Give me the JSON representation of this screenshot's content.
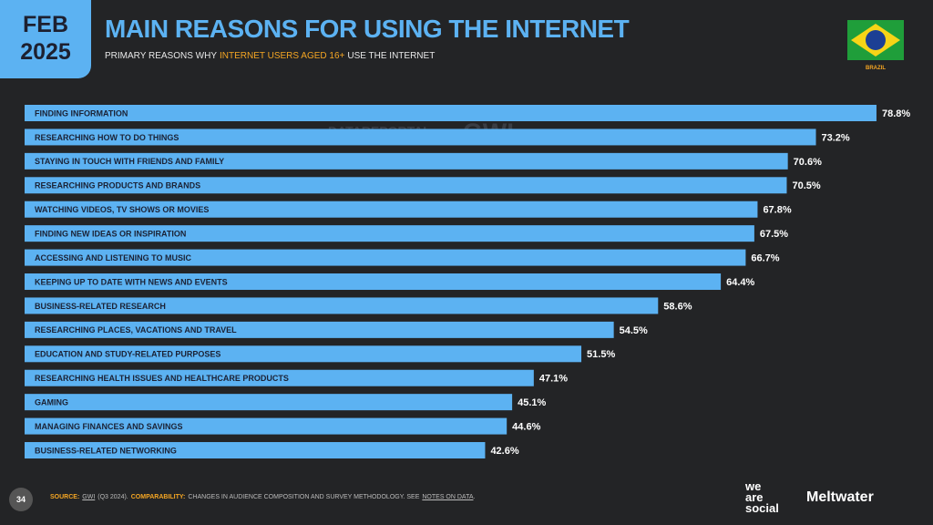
{
  "header": {
    "month": "FEB",
    "year": "2025",
    "title": "MAIN REASONS FOR USING THE INTERNET",
    "subtitle": [
      "PRIMARY REASONS WHY",
      "INTERNET USERS AGED 16+",
      "USE THE INTERNET"
    ],
    "country": "BRAZIL"
  },
  "watermark": [
    "DATAREPORTAL",
    "GWI."
  ],
  "chart_data": {
    "type": "bar",
    "orientation": "horizontal",
    "categories": [
      "FINDING INFORMATION",
      "RESEARCHING HOW TO DO THINGS",
      "STAYING IN TOUCH WITH FRIENDS AND FAMILY",
      "RESEARCHING PRODUCTS AND BRANDS",
      "WATCHING VIDEOS, TV SHOWS OR MOVIES",
      "FINDING NEW IDEAS OR INSPIRATION",
      "ACCESSING AND LISTENING TO MUSIC",
      "KEEPING UP TO DATE WITH NEWS AND EVENTS",
      "BUSINESS-RELATED RESEARCH",
      "RESEARCHING PLACES, VACATIONS AND TRAVEL",
      "EDUCATION AND STUDY-RELATED PURPOSES",
      "RESEARCHING HEALTH ISSUES AND HEALTHCARE PRODUCTS",
      "GAMING",
      "MANAGING FINANCES AND SAVINGS",
      "BUSINESS-RELATED NETWORKING"
    ],
    "values": [
      78.8,
      73.2,
      70.6,
      70.5,
      67.8,
      67.5,
      66.7,
      64.4,
      58.6,
      54.5,
      51.5,
      47.1,
      45.1,
      44.6,
      42.6
    ],
    "value_labels": [
      "78.8%",
      "73.2%",
      "70.6%",
      "70.5%",
      "67.8%",
      "67.5%",
      "66.7%",
      "64.4%",
      "58.6%",
      "54.5%",
      "51.5%",
      "47.1%",
      "45.1%",
      "44.6%",
      "42.6%"
    ],
    "color": "#5cb2f2"
  },
  "footer": {
    "page": "34",
    "source_label": "SOURCE:",
    "source": "GWI",
    "source_period": "(Q3 2024).",
    "comparability_label": "COMPARABILITY:",
    "comparability": "CHANGES IN AUDIENCE COMPOSITION AND SURVEY METHODOLOGY. SEE",
    "notes_link": "NOTES ON DATA",
    "notes_end": ".",
    "brand1": [
      "we",
      "are",
      "social"
    ],
    "brand2": "Meltwater"
  }
}
